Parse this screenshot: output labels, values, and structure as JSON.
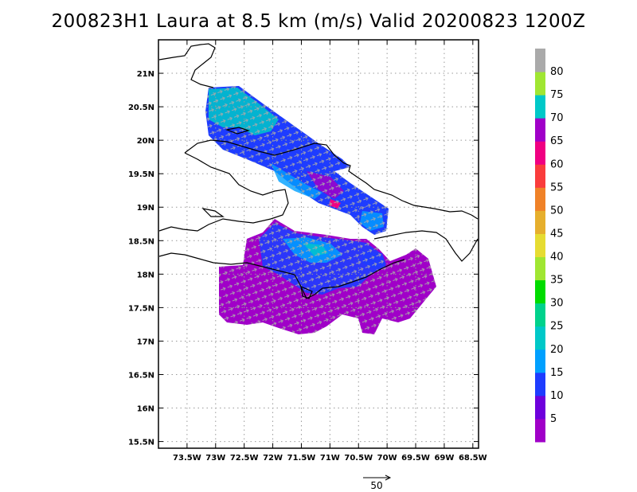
{
  "title": "200823H1 Laura at 8.5 km (m/s) Valid 20200823  1200Z",
  "map": {
    "lon_range": [
      -74,
      -68.4
    ],
    "lat_range": [
      15.4,
      21.5
    ],
    "lon_ticks": [
      {
        "value": -73.5,
        "label": "73.5W"
      },
      {
        "value": -73,
        "label": "73W"
      },
      {
        "value": -72.5,
        "label": "72.5W"
      },
      {
        "value": -72,
        "label": "72W"
      },
      {
        "value": -71.5,
        "label": "71.5W"
      },
      {
        "value": -71,
        "label": "71W"
      },
      {
        "value": -70.5,
        "label": "70.5W"
      },
      {
        "value": -70,
        "label": "70W"
      },
      {
        "value": -69.5,
        "label": "69.5W"
      },
      {
        "value": -69,
        "label": "69W"
      },
      {
        "value": -68.5,
        "label": "68.5W"
      }
    ],
    "lat_ticks": [
      {
        "value": 21,
        "label": "21N"
      },
      {
        "value": 20.5,
        "label": "20.5N"
      },
      {
        "value": 20,
        "label": "20N"
      },
      {
        "value": 19.5,
        "label": "19.5N"
      },
      {
        "value": 19,
        "label": "19N"
      },
      {
        "value": 18.5,
        "label": "18.5N"
      },
      {
        "value": 18,
        "label": "18N"
      },
      {
        "value": 17.5,
        "label": "17.5N"
      },
      {
        "value": 17,
        "label": "17N"
      },
      {
        "value": 16.5,
        "label": "16.5N"
      },
      {
        "value": 16,
        "label": "16N"
      },
      {
        "value": 15.5,
        "label": "15.5N"
      }
    ],
    "grid": "dotted"
  },
  "colorbar": {
    "bins": [
      {
        "label": "5",
        "color": "#a000c8"
      },
      {
        "label": "10",
        "color": "#6e00dc"
      },
      {
        "label": "15",
        "color": "#1e3cff"
      },
      {
        "label": "20",
        "color": "#00a0ff"
      },
      {
        "label": "25",
        "color": "#00c8c8"
      },
      {
        "label": "30",
        "color": "#00d28c"
      },
      {
        "label": "35",
        "color": "#00dc00"
      },
      {
        "label": "40",
        "color": "#a0e632"
      },
      {
        "label": "45",
        "color": "#e6dc32"
      },
      {
        "label": "50",
        "color": "#e6af2d"
      },
      {
        "label": "55",
        "color": "#f08228"
      },
      {
        "label": "60",
        "color": "#fa3c3c"
      },
      {
        "label": "65",
        "color": "#f00082"
      },
      {
        "label": "70",
        "color": "#a000c8"
      },
      {
        "label": "75",
        "color": "#00c8c8"
      },
      {
        "label": "80",
        "color": "#a0e632"
      },
      {
        "label": "",
        "color": "#aaaaaa"
      }
    ]
  },
  "reference_vector": {
    "label": "50",
    "units": "m/s"
  },
  "colors": {
    "purple": "#a000c8",
    "blue": "#1e3cff",
    "cyan": "#00c8c8",
    "lightblue": "#00a0ff",
    "arrow": "#aaaaaa",
    "coast": "#000000"
  }
}
